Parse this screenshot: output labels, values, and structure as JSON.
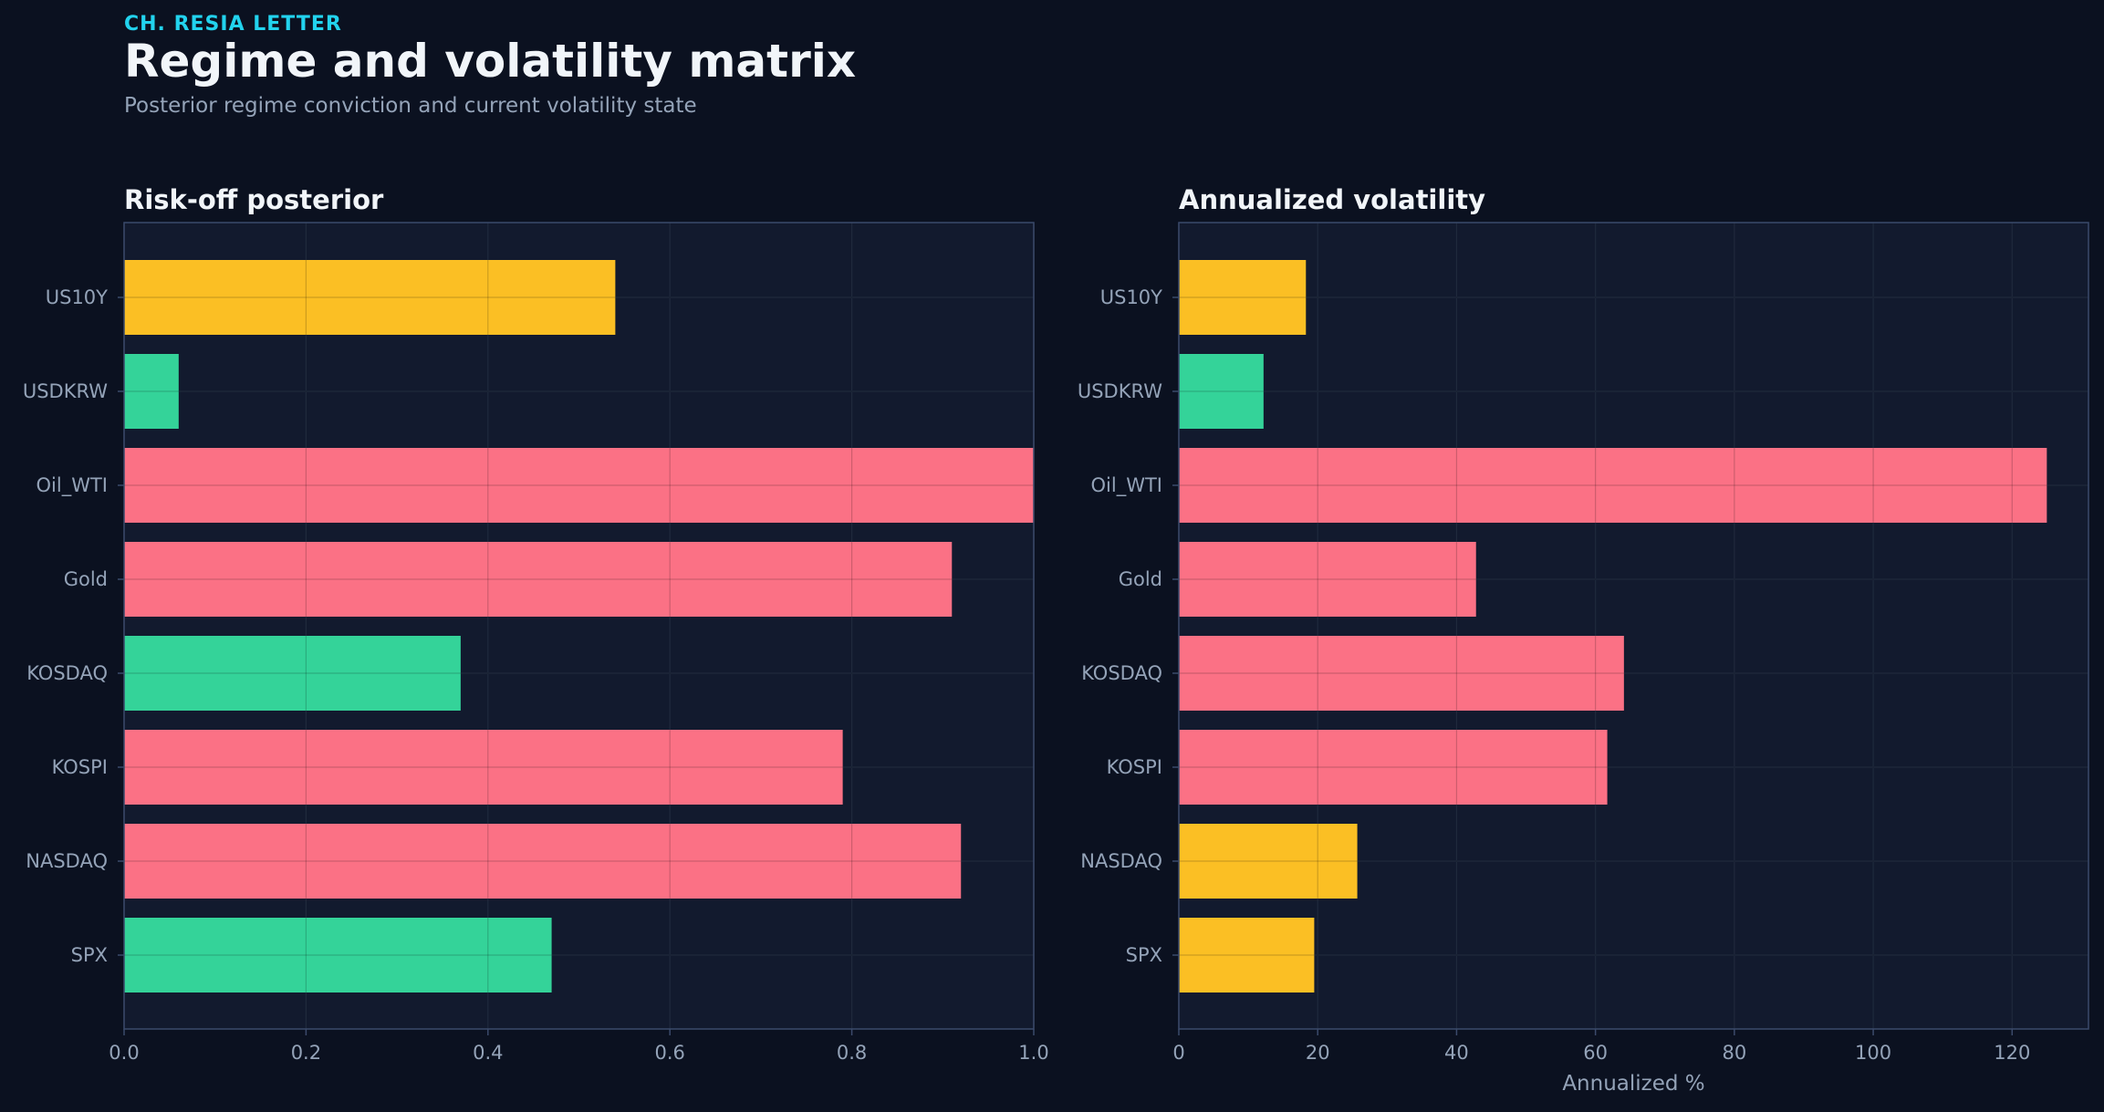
{
  "header": {
    "kicker": "CH. RESIA LETTER",
    "title": "Regime and volatility matrix",
    "subtitle": "Posterior regime conviction and current volatility state"
  },
  "colors": {
    "background": "#0b1120",
    "panel": "#121a2e",
    "frame": "#3b4a6b",
    "grid": "#26324a",
    "amber": "#fbbf24",
    "green": "#34d399",
    "red": "#fb7185"
  },
  "chart_data": [
    {
      "type": "bar",
      "orientation": "horizontal",
      "title": "Risk-off posterior",
      "xlabel": "",
      "ylabel": "",
      "xlim": [
        0,
        1.0
      ],
      "xticks": [
        "0.0",
        "0.2",
        "0.4",
        "0.6",
        "0.8",
        "1.0"
      ],
      "xtick_values": [
        0,
        0.2,
        0.4,
        0.6,
        0.8,
        1.0
      ],
      "grid": true,
      "categories": [
        "US10Y",
        "USDKRW",
        "Oil_WTI",
        "Gold",
        "KOSDAQ",
        "KOSPI",
        "NASDAQ",
        "SPX"
      ],
      "values": [
        0.54,
        0.06,
        1.0,
        0.91,
        0.37,
        0.79,
        0.92,
        0.47
      ],
      "bar_colors": [
        "#fbbf24",
        "#34d399",
        "#fb7185",
        "#fb7185",
        "#34d399",
        "#fb7185",
        "#fb7185",
        "#34d399"
      ]
    },
    {
      "type": "bar",
      "orientation": "horizontal",
      "title": "Annualized volatility",
      "xlabel": "Annualized %",
      "ylabel": "",
      "xlim": [
        0,
        131
      ],
      "xticks": [
        "0",
        "20",
        "40",
        "60",
        "80",
        "100",
        "120"
      ],
      "xtick_values": [
        0,
        20,
        40,
        60,
        80,
        100,
        120
      ],
      "grid": true,
      "categories": [
        "US10Y",
        "USDKRW",
        "Oil_WTI",
        "Gold",
        "KOSDAQ",
        "KOSPI",
        "NASDAQ",
        "SPX"
      ],
      "values": [
        18.3,
        12.2,
        125.0,
        42.8,
        64.1,
        61.7,
        25.7,
        19.5
      ],
      "bar_colors": [
        "#fbbf24",
        "#34d399",
        "#fb7185",
        "#fb7185",
        "#fb7185",
        "#fb7185",
        "#fbbf24",
        "#fbbf24"
      ]
    }
  ]
}
